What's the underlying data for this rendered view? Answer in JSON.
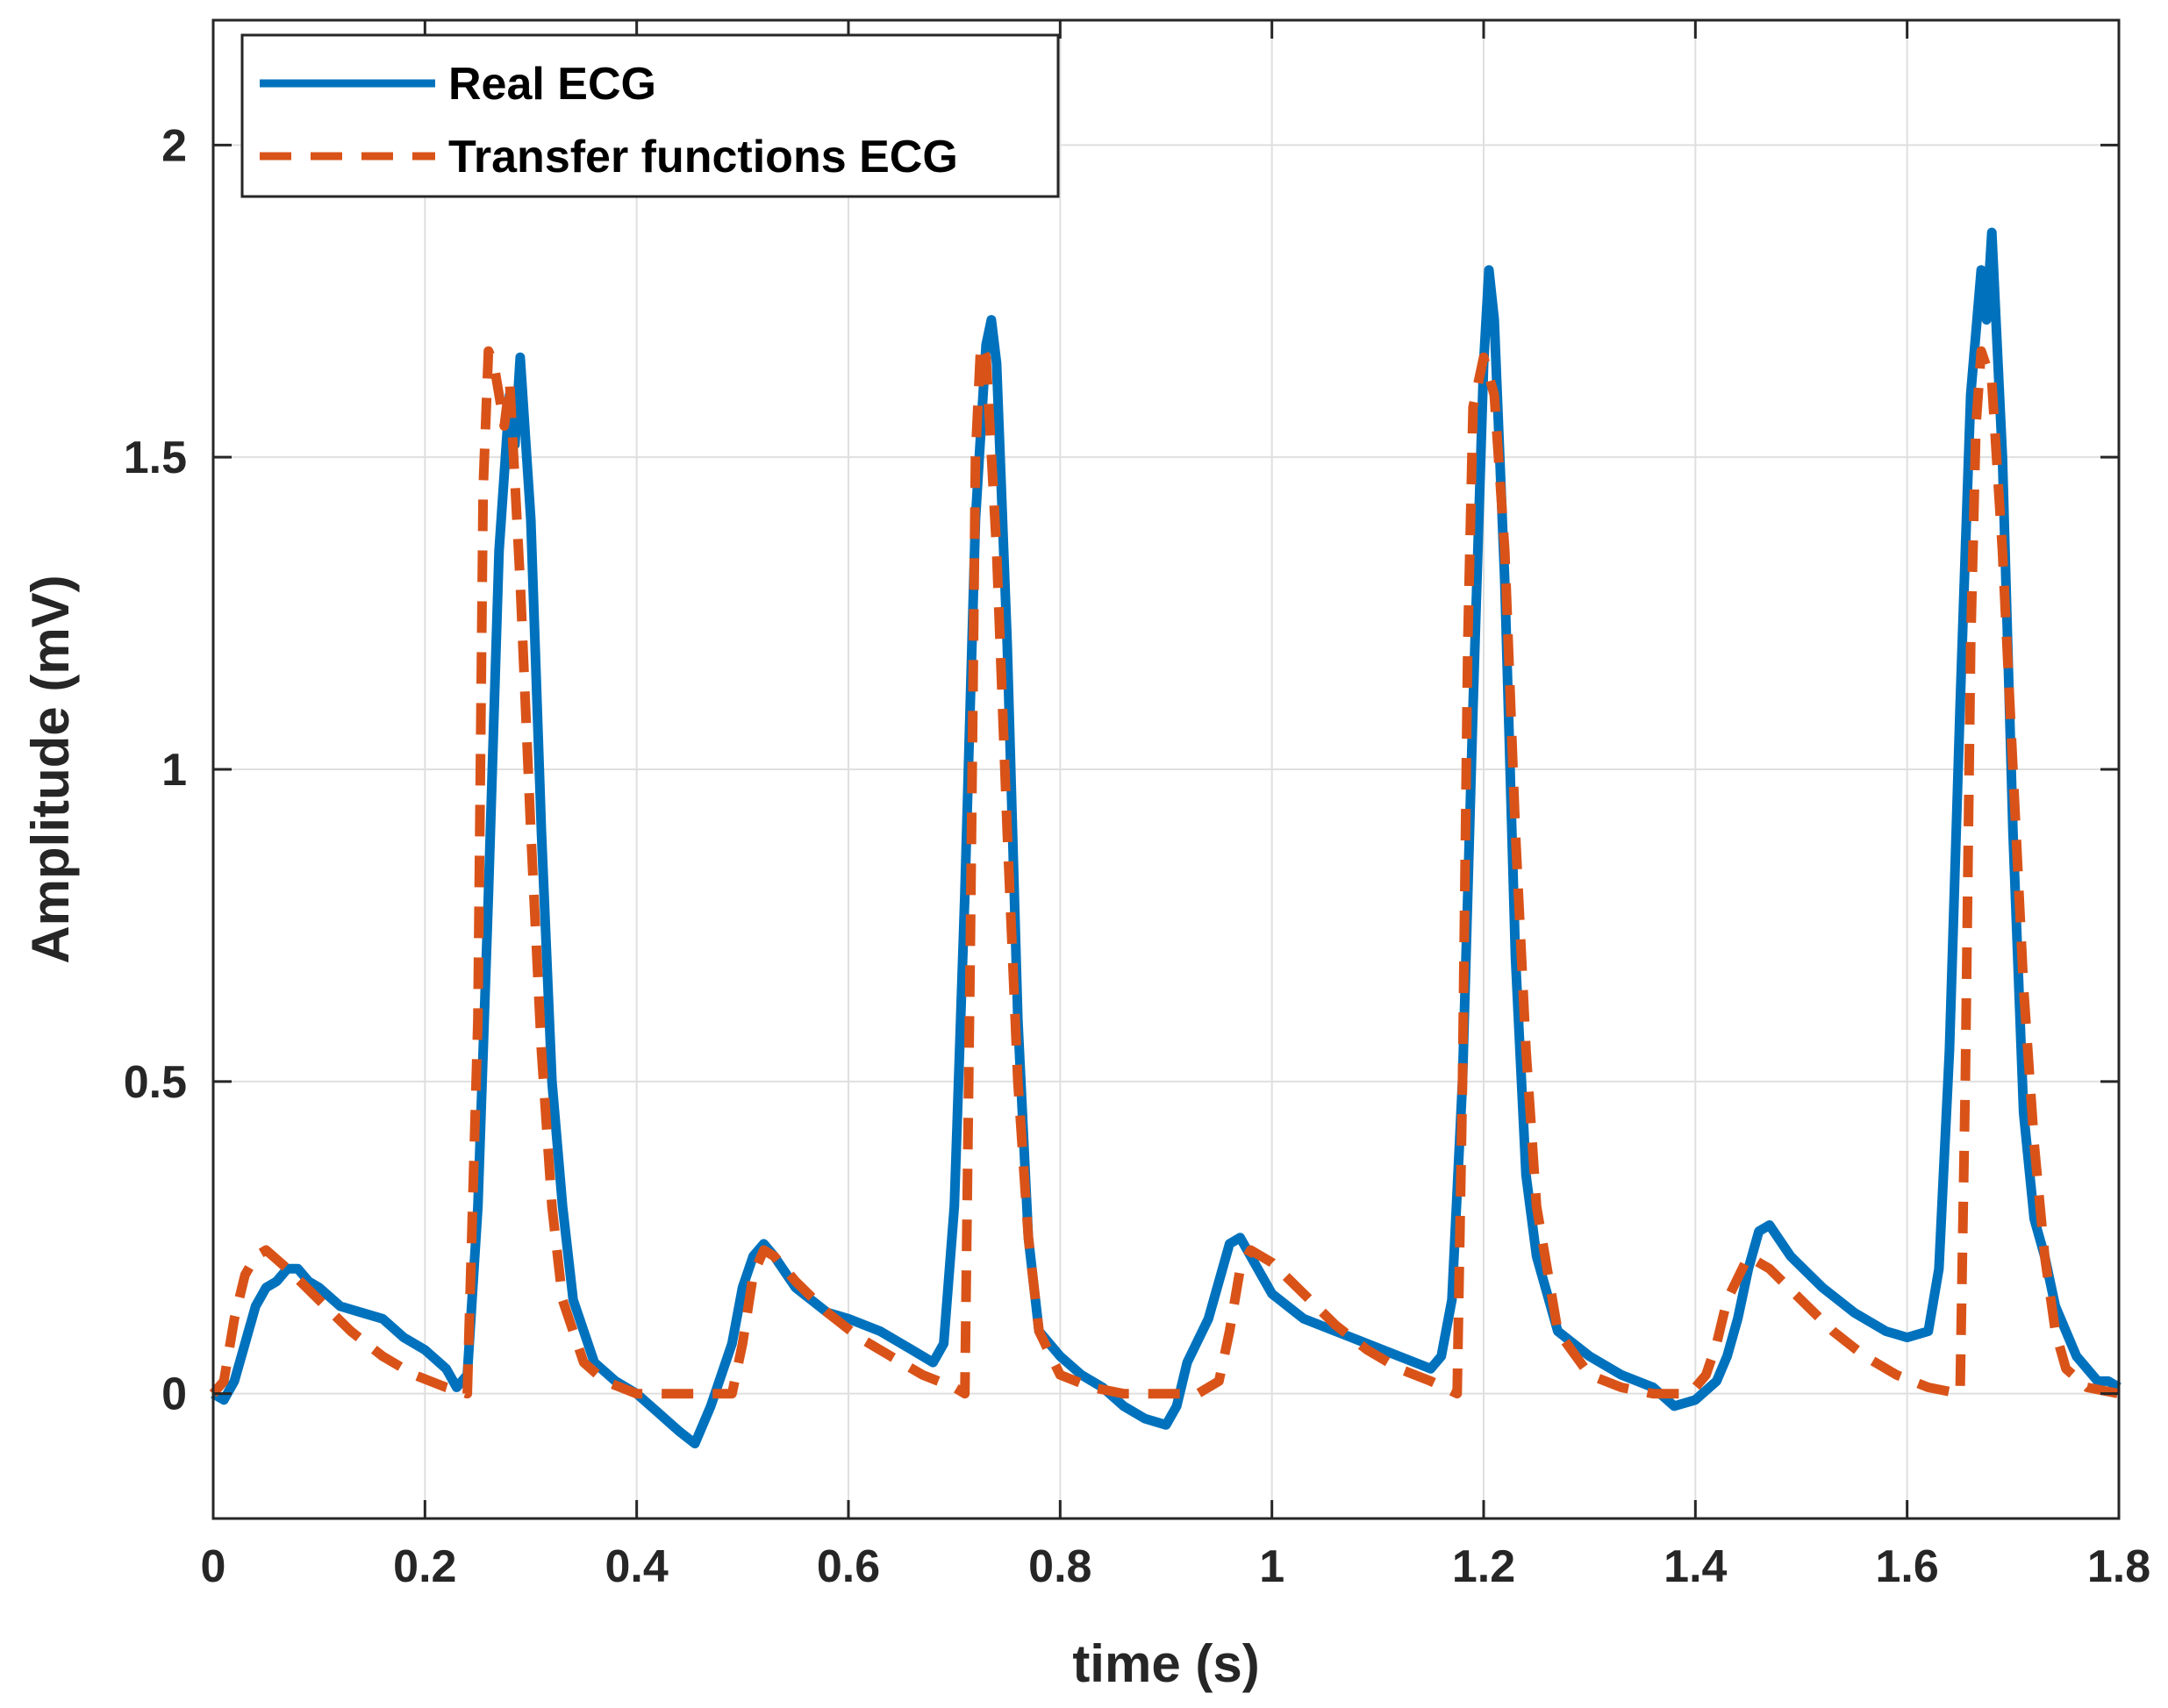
{
  "chart_data": {
    "type": "line",
    "title": "",
    "xlabel": "time (s)",
    "ylabel": "Amplitude (mV)",
    "xlim": [
      0,
      1.8
    ],
    "ylim": [
      -0.2,
      2.2
    ],
    "xticks": [
      0,
      0.2,
      0.4,
      0.6,
      0.8,
      1,
      1.2,
      1.4,
      1.6,
      1.8
    ],
    "xtick_labels": [
      "0",
      "0.2",
      "0.4",
      "0.6",
      "0.8",
      "1",
      "1.2",
      "1.4",
      "1.6",
      "1.8"
    ],
    "yticks": [
      0,
      0.5,
      1,
      1.5,
      2
    ],
    "ytick_labels": [
      "0",
      "0.5",
      "1",
      "1.5",
      "2"
    ],
    "grid": true,
    "legend_position": "top-left",
    "series": [
      {
        "name": "Real ECG",
        "color": "#0072BD",
        "style": "solid",
        "x": [
          0,
          0.01,
          0.02,
          0.03,
          0.04,
          0.05,
          0.06,
          0.07,
          0.08,
          0.09,
          0.1,
          0.12,
          0.14,
          0.16,
          0.18,
          0.2,
          0.22,
          0.23,
          0.24,
          0.25,
          0.26,
          0.27,
          0.28,
          0.285,
          0.29,
          0.3,
          0.31,
          0.32,
          0.33,
          0.34,
          0.36,
          0.38,
          0.4,
          0.42,
          0.44,
          0.455,
          0.47,
          0.49,
          0.5,
          0.51,
          0.52,
          0.53,
          0.55,
          0.58,
          0.6,
          0.63,
          0.66,
          0.68,
          0.69,
          0.7,
          0.71,
          0.72,
          0.73,
          0.735,
          0.74,
          0.75,
          0.76,
          0.77,
          0.78,
          0.8,
          0.82,
          0.84,
          0.86,
          0.88,
          0.9,
          0.91,
          0.92,
          0.94,
          0.96,
          0.97,
          0.98,
          1,
          1.03,
          1.06,
          1.09,
          1.12,
          1.15,
          1.16,
          1.17,
          1.18,
          1.19,
          1.2,
          1.205,
          1.21,
          1.22,
          1.23,
          1.24,
          1.25,
          1.27,
          1.3,
          1.33,
          1.36,
          1.38,
          1.4,
          1.42,
          1.43,
          1.44,
          1.45,
          1.46,
          1.47,
          1.49,
          1.52,
          1.55,
          1.58,
          1.6,
          1.62,
          1.63,
          1.64,
          1.65,
          1.66,
          1.67,
          1.675,
          1.68,
          1.69,
          1.7,
          1.71,
          1.72,
          1.73,
          1.74,
          1.76,
          1.78,
          1.79,
          1.8
        ],
        "values": [
          0,
          -0.01,
          0.02,
          0.08,
          0.14,
          0.17,
          0.18,
          0.2,
          0.2,
          0.18,
          0.17,
          0.14,
          0.13,
          0.12,
          0.09,
          0.07,
          0.04,
          0.01,
          0.03,
          0.3,
          0.8,
          1.35,
          1.6,
          1.52,
          1.66,
          1.4,
          0.9,
          0.5,
          0.3,
          0.15,
          0.05,
          0.02,
          0,
          -0.03,
          -0.06,
          -0.08,
          -0.02,
          0.08,
          0.17,
          0.22,
          0.24,
          0.22,
          0.17,
          0.13,
          0.12,
          0.1,
          0.07,
          0.05,
          0.08,
          0.3,
          0.8,
          1.4,
          1.68,
          1.72,
          1.65,
          1.2,
          0.6,
          0.25,
          0.1,
          0.06,
          0.03,
          0.01,
          -0.02,
          -0.04,
          -0.05,
          -0.02,
          0.05,
          0.12,
          0.24,
          0.25,
          0.22,
          0.16,
          0.12,
          0.1,
          0.08,
          0.06,
          0.04,
          0.06,
          0.15,
          0.5,
          1.1,
          1.65,
          1.8,
          1.72,
          1.3,
          0.7,
          0.35,
          0.22,
          0.1,
          0.06,
          0.03,
          0.01,
          -0.02,
          -0.01,
          0.02,
          0.06,
          0.12,
          0.2,
          0.26,
          0.27,
          0.22,
          0.17,
          0.13,
          0.1,
          0.09,
          0.1,
          0.2,
          0.55,
          1.1,
          1.6,
          1.8,
          1.72,
          1.86,
          1.5,
          0.9,
          0.45,
          0.28,
          0.22,
          0.14,
          0.06,
          0.02,
          0.02,
          0.01
        ]
      },
      {
        "name": "Transfer functions ECG",
        "color": "#D95319",
        "style": "dashed",
        "x": [
          0,
          0.01,
          0.02,
          0.03,
          0.04,
          0.05,
          0.07,
          0.1,
          0.13,
          0.16,
          0.19,
          0.22,
          0.24,
          0.25,
          0.255,
          0.26,
          0.265,
          0.27,
          0.275,
          0.28,
          0.29,
          0.3,
          0.31,
          0.32,
          0.33,
          0.35,
          0.37,
          0.4,
          0.45,
          0.49,
          0.5,
          0.51,
          0.52,
          0.53,
          0.55,
          0.58,
          0.61,
          0.64,
          0.67,
          0.7,
          0.71,
          0.715,
          0.72,
          0.725,
          0.73,
          0.74,
          0.75,
          0.76,
          0.77,
          0.78,
          0.8,
          0.83,
          0.86,
          0.9,
          0.93,
          0.95,
          0.96,
          0.97,
          0.98,
          1,
          1.03,
          1.06,
          1.09,
          1.12,
          1.15,
          1.175,
          1.18,
          1.185,
          1.19,
          1.2,
          1.21,
          1.22,
          1.23,
          1.24,
          1.25,
          1.27,
          1.3,
          1.33,
          1.36,
          1.39,
          1.4,
          1.41,
          1.42,
          1.43,
          1.45,
          1.47,
          1.5,
          1.53,
          1.56,
          1.59,
          1.62,
          1.65,
          1.655,
          1.66,
          1.665,
          1.67,
          1.68,
          1.69,
          1.7,
          1.71,
          1.72,
          1.73,
          1.74,
          1.75,
          1.77,
          1.8
        ],
        "values": [
          0,
          0.02,
          0.12,
          0.19,
          0.22,
          0.23,
          0.2,
          0.15,
          0.1,
          0.06,
          0.03,
          0.01,
          0,
          0.6,
          1.45,
          1.67,
          1.65,
          1.6,
          1.55,
          1.62,
          1.3,
          0.9,
          0.55,
          0.3,
          0.15,
          0.05,
          0.02,
          0,
          0,
          0,
          0.08,
          0.19,
          0.23,
          0.22,
          0.18,
          0.13,
          0.09,
          0.06,
          0.03,
          0.01,
          0,
          0.7,
          1.5,
          1.68,
          1.66,
          1.35,
          0.9,
          0.5,
          0.25,
          0.1,
          0.03,
          0.01,
          0,
          0,
          0,
          0.02,
          0.1,
          0.2,
          0.23,
          0.21,
          0.16,
          0.11,
          0.07,
          0.04,
          0.02,
          0,
          0.5,
          1.2,
          1.58,
          1.66,
          1.6,
          1.35,
          0.9,
          0.55,
          0.3,
          0.1,
          0.03,
          0.01,
          0,
          0,
          0.01,
          0.03,
          0.08,
          0.15,
          0.22,
          0.2,
          0.15,
          0.1,
          0.06,
          0.03,
          0.01,
          0,
          0.5,
          1.2,
          1.55,
          1.67,
          1.62,
          1.35,
          1.0,
          0.65,
          0.4,
          0.22,
          0.1,
          0.04,
          0.01,
          0
        ]
      }
    ]
  }
}
